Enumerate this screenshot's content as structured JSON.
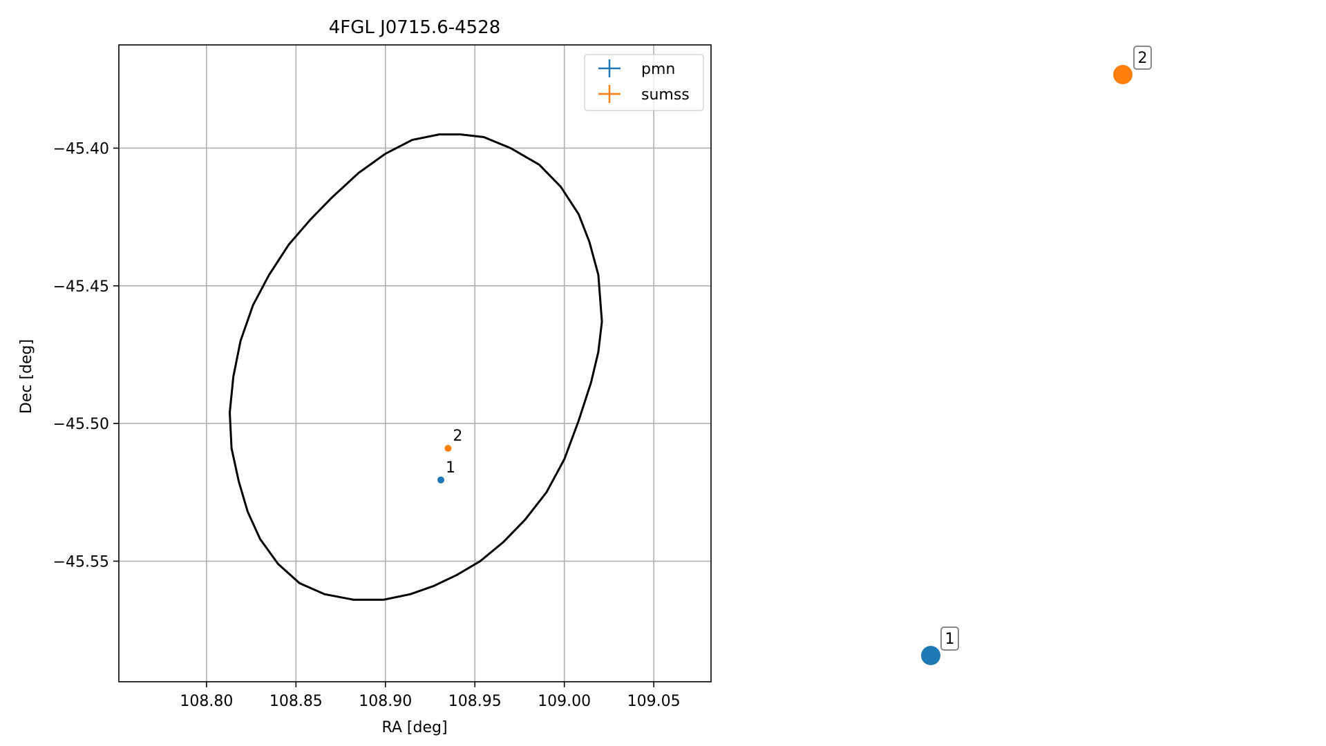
{
  "chart_data": [
    {
      "type": "scatter",
      "title": "4FGL J0715.6-4528",
      "xlabel": "RA [deg]",
      "ylabel": "Dec [deg]",
      "xlim": [
        108.751,
        109.082
      ],
      "ylim": [
        -45.5938,
        -45.3625
      ],
      "grid": true,
      "legend_placement": "top-right",
      "x_ticks": [
        108.8,
        108.85,
        108.9,
        108.95,
        109.0,
        109.05
      ],
      "x_tick_labels": [
        "108.80",
        "108.85",
        "108.90",
        "108.95",
        "109.00",
        "109.05"
      ],
      "y_ticks": [
        -45.4,
        -45.45,
        -45.5,
        -45.55
      ],
      "y_tick_labels": [
        "−45.40",
        "−45.45",
        "−45.50",
        "−45.55"
      ],
      "series": [
        {
          "name": "pmn",
          "color": "#1f77b4",
          "points": [
            {
              "x": 108.931,
              "y": -45.5205,
              "label": "1"
            }
          ]
        },
        {
          "name": "sumss",
          "color": "#ff7f0e",
          "points": [
            {
              "x": 108.935,
              "y": -45.509,
              "label": "2"
            }
          ]
        }
      ],
      "ellipse": {
        "color": "#000000",
        "points": [
          [
            109.021,
            -45.463
          ],
          [
            109.019,
            -45.446
          ],
          [
            109.014,
            -45.434
          ],
          [
            109.008,
            -45.424
          ],
          [
            108.998,
            -45.414
          ],
          [
            108.986,
            -45.406
          ],
          [
            108.97,
            -45.4
          ],
          [
            108.955,
            -45.396
          ],
          [
            108.942,
            -45.395
          ],
          [
            108.93,
            -45.395
          ],
          [
            108.915,
            -45.397
          ],
          [
            108.9,
            -45.402
          ],
          [
            108.885,
            -45.409
          ],
          [
            108.87,
            -45.418
          ],
          [
            108.858,
            -45.426
          ],
          [
            108.846,
            -45.435
          ],
          [
            108.835,
            -45.446
          ],
          [
            108.826,
            -45.457
          ],
          [
            108.819,
            -45.47
          ],
          [
            108.815,
            -45.483
          ],
          [
            108.813,
            -45.496
          ],
          [
            108.814,
            -45.509
          ],
          [
            108.818,
            -45.521
          ],
          [
            108.823,
            -45.532
          ],
          [
            108.83,
            -45.542
          ],
          [
            108.84,
            -45.551
          ],
          [
            108.852,
            -45.558
          ],
          [
            108.866,
            -45.562
          ],
          [
            108.882,
            -45.564
          ],
          [
            108.899,
            -45.564
          ],
          [
            108.914,
            -45.562
          ],
          [
            108.927,
            -45.559
          ],
          [
            108.94,
            -45.555
          ],
          [
            108.953,
            -45.55
          ],
          [
            108.966,
            -45.543
          ],
          [
            108.978,
            -45.535
          ],
          [
            108.99,
            -45.525
          ],
          [
            109.0,
            -45.513
          ],
          [
            109.008,
            -45.499
          ],
          [
            109.015,
            -45.485
          ],
          [
            109.019,
            -45.474
          ],
          [
            109.021,
            -45.463
          ]
        ]
      }
    },
    {
      "type": "scatter",
      "title": "",
      "points": [
        {
          "label": "2",
          "color": "#ff7f0e"
        },
        {
          "label": "1",
          "color": "#1f77b4"
        }
      ]
    }
  ]
}
